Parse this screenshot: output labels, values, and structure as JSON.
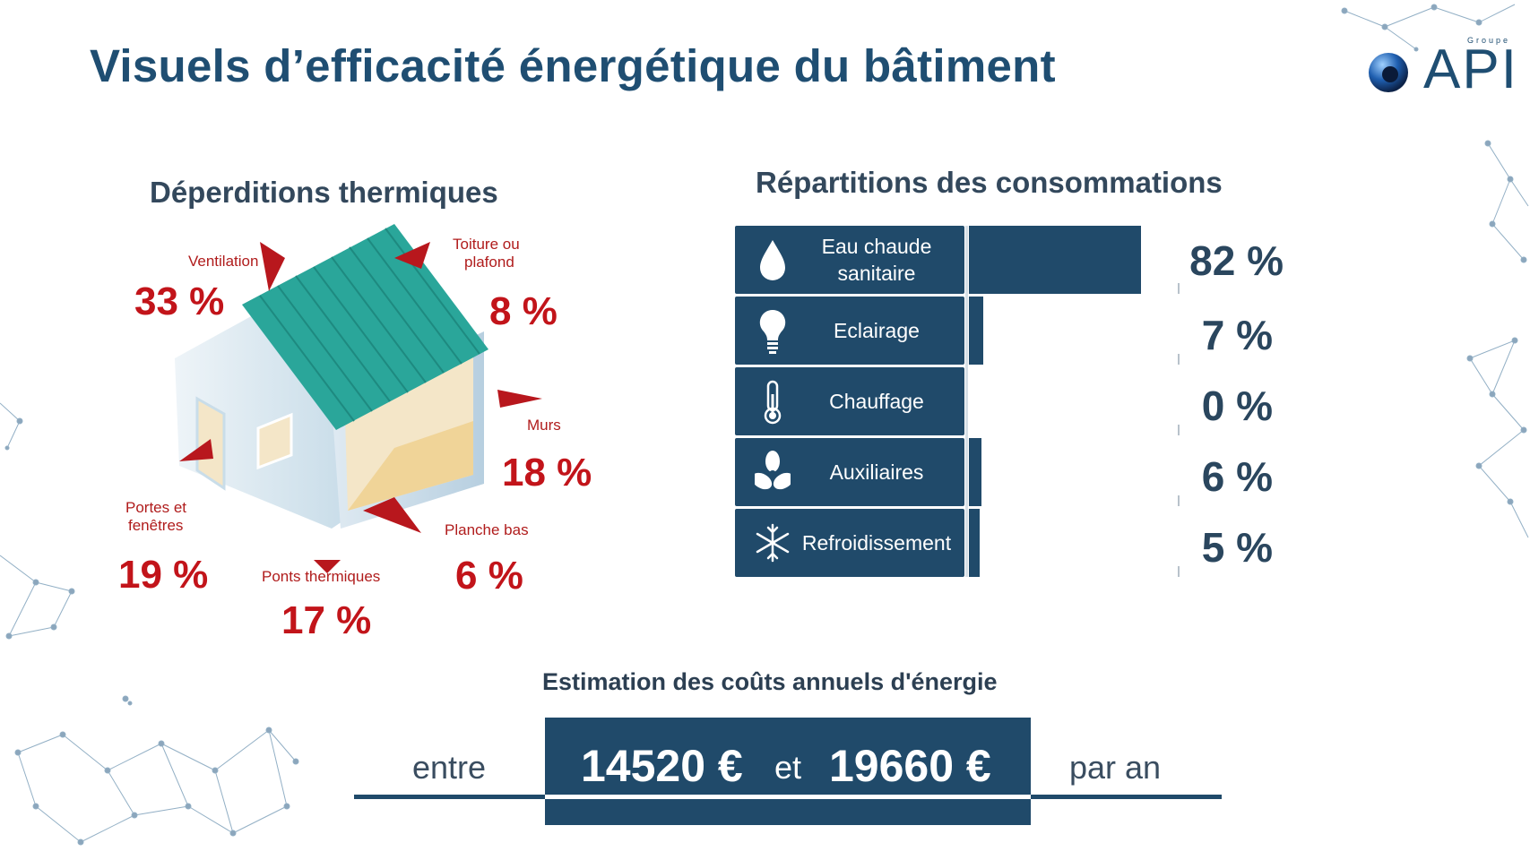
{
  "title": "Visuels d’efficacité énergétique du bâtiment",
  "logo": {
    "small_text": "Groupe",
    "brand": "API"
  },
  "losses": {
    "title": "Déperditions thermiques",
    "items": [
      {
        "label_line1": "Ventilation",
        "label_line2": "",
        "value": "33 %"
      },
      {
        "label_line1": "Toiture ou",
        "label_line2": "plafond",
        "value": "8 %"
      },
      {
        "label_line1": "Murs",
        "label_line2": "",
        "value": "18 %"
      },
      {
        "label_line1": "Portes et",
        "label_line2": "fenêtres",
        "value": "19 %"
      },
      {
        "label_line1": "Ponts thermiques",
        "label_line2": "",
        "value": "17 %"
      },
      {
        "label_line1": "Planche bas",
        "label_line2": "",
        "value": "6 %"
      }
    ]
  },
  "consumption": {
    "title": "Répartitions des consommations",
    "rows": [
      {
        "label_line1": "Eau chaude",
        "label_line2": "sanitaire",
        "icon": "water-drop-icon",
        "value": 82,
        "value_text": "82 %"
      },
      {
        "label_line1": "Eclairage",
        "label_line2": "",
        "icon": "lightbulb-icon",
        "value": 7,
        "value_text": "7 %"
      },
      {
        "label_line1": "Chauffage",
        "label_line2": "",
        "icon": "thermometer-icon",
        "value": 0,
        "value_text": "0 %"
      },
      {
        "label_line1": "Auxiliaires",
        "label_line2": "",
        "icon": "fan-icon",
        "value": 6,
        "value_text": "6 %"
      },
      {
        "label_line1": "Refroidissement",
        "label_line2": "",
        "icon": "snowflake-icon",
        "value": 5,
        "value_text": "5 %"
      }
    ]
  },
  "costs": {
    "title": "Estimation des coûts annuels d'énergie",
    "prefix": "entre",
    "low": "14520 €",
    "connector": "et",
    "high": "19660 €",
    "suffix": "par an"
  },
  "colors": {
    "navy": "#204a6a",
    "red": "#c2141a",
    "roof": "#2aa69a"
  }
}
